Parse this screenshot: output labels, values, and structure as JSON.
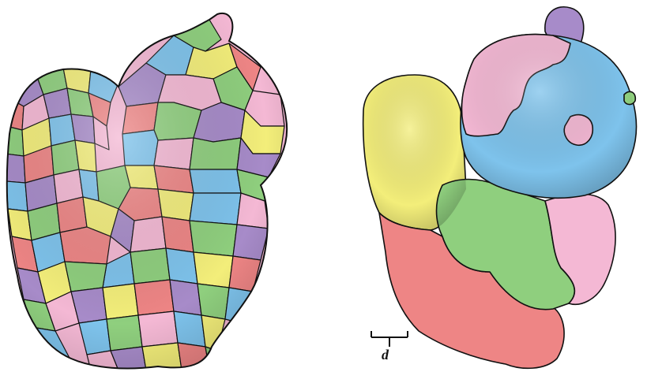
{
  "figure": {
    "left_panel": {
      "subject": "squirrel-model",
      "segmentation": "many-small-patches"
    },
    "right_panel": {
      "subject": "squirrel-model",
      "segmentation": "few-large-regions"
    },
    "scale_bar": {
      "label": "d"
    },
    "palette": {
      "pink": "#f4b8d4",
      "green": "#8fcf7e",
      "blue": "#7ec3ec",
      "yellow": "#f3ee7a",
      "purple": "#a78bc9",
      "red": "#ee8585",
      "outline": "#111111"
    }
  }
}
